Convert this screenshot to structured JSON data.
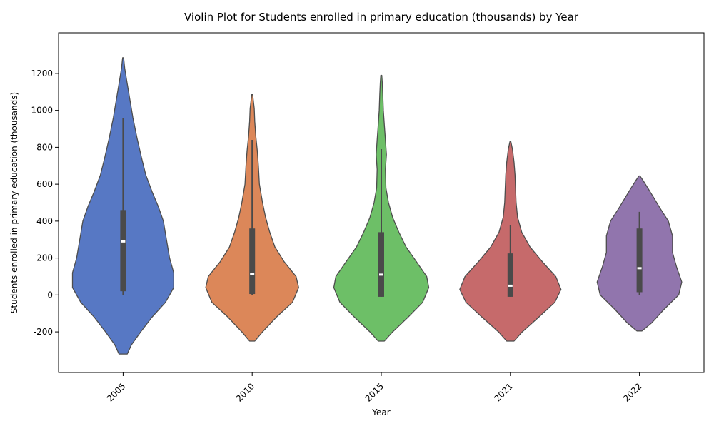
{
  "chart_data": {
    "type": "violin",
    "title": "Violin Plot for Students enrolled in primary education (thousands) by Year",
    "xlabel": "Year",
    "ylabel": "Students enrolled in primary education (thousands)",
    "ylim": [
      -420,
      1420
    ],
    "yticks": [
      -200,
      0,
      200,
      400,
      600,
      800,
      1000,
      1200
    ],
    "grid": false,
    "legend": "none",
    "categories": [
      "2005",
      "2010",
      "2015",
      "2021",
      "2022"
    ],
    "colors": [
      "#5778c4",
      "#dc8759",
      "#6dbf67",
      "#c66a6b",
      "#9175ad"
    ],
    "outline_color": "#4d4d4d",
    "series": [
      {
        "category": "2005",
        "box": {
          "whisker_low": 0,
          "q1": 20,
          "median": 290,
          "q3": 460,
          "whisker_high": 960
        },
        "density": [
          [
            -320,
            0.08
          ],
          [
            -270,
            0.16
          ],
          [
            -200,
            0.34
          ],
          [
            -120,
            0.56
          ],
          [
            -40,
            0.82
          ],
          [
            40,
            0.98
          ],
          [
            120,
            0.98
          ],
          [
            200,
            0.9
          ],
          [
            300,
            0.84
          ],
          [
            400,
            0.78
          ],
          [
            480,
            0.68
          ],
          [
            560,
            0.56
          ],
          [
            650,
            0.44
          ],
          [
            740,
            0.36
          ],
          [
            850,
            0.27
          ],
          [
            960,
            0.19
          ],
          [
            1060,
            0.13
          ],
          [
            1160,
            0.07
          ],
          [
            1230,
            0.03
          ],
          [
            1285,
            0.01
          ]
        ]
      },
      {
        "category": "2010",
        "box": {
          "whisker_low": 0,
          "q1": 5,
          "median": 115,
          "q3": 360,
          "whisker_high": 840
        },
        "density": [
          [
            -250,
            0.05
          ],
          [
            -200,
            0.2
          ],
          [
            -120,
            0.47
          ],
          [
            -40,
            0.78
          ],
          [
            40,
            0.9
          ],
          [
            100,
            0.85
          ],
          [
            180,
            0.62
          ],
          [
            260,
            0.44
          ],
          [
            340,
            0.34
          ],
          [
            420,
            0.26
          ],
          [
            500,
            0.2
          ],
          [
            600,
            0.14
          ],
          [
            700,
            0.12
          ],
          [
            780,
            0.1
          ],
          [
            860,
            0.07
          ],
          [
            940,
            0.05
          ],
          [
            1010,
            0.04
          ],
          [
            1060,
            0.02
          ],
          [
            1085,
            0.01
          ]
        ]
      },
      {
        "category": "2015",
        "box": {
          "whisker_low": -10,
          "q1": -10,
          "median": 110,
          "q3": 340,
          "whisker_high": 790
        },
        "density": [
          [
            -250,
            0.06
          ],
          [
            -200,
            0.22
          ],
          [
            -120,
            0.52
          ],
          [
            -40,
            0.8
          ],
          [
            40,
            0.92
          ],
          [
            100,
            0.88
          ],
          [
            180,
            0.68
          ],
          [
            260,
            0.48
          ],
          [
            340,
            0.34
          ],
          [
            420,
            0.22
          ],
          [
            500,
            0.14
          ],
          [
            580,
            0.09
          ],
          [
            680,
            0.08
          ],
          [
            760,
            0.1
          ],
          [
            840,
            0.08
          ],
          [
            920,
            0.06
          ],
          [
            1000,
            0.04
          ],
          [
            1080,
            0.03
          ],
          [
            1150,
            0.02
          ],
          [
            1190,
            0.01
          ]
        ]
      },
      {
        "category": "2021",
        "box": {
          "whisker_low": -10,
          "q1": -10,
          "median": 50,
          "q3": 225,
          "whisker_high": 380
        },
        "density": [
          [
            -250,
            0.07
          ],
          [
            -200,
            0.23
          ],
          [
            -120,
            0.55
          ],
          [
            -40,
            0.86
          ],
          [
            30,
            0.98
          ],
          [
            100,
            0.88
          ],
          [
            180,
            0.62
          ],
          [
            260,
            0.38
          ],
          [
            340,
            0.22
          ],
          [
            420,
            0.14
          ],
          [
            500,
            0.11
          ],
          [
            580,
            0.1
          ],
          [
            650,
            0.09
          ],
          [
            720,
            0.07
          ],
          [
            790,
            0.04
          ],
          [
            830,
            0.01
          ]
        ]
      },
      {
        "category": "2022",
        "box": {
          "whisker_low": 0,
          "q1": 15,
          "median": 145,
          "q3": 360,
          "whisker_high": 450
        },
        "density": [
          [
            -195,
            0.05
          ],
          [
            -150,
            0.24
          ],
          [
            -80,
            0.47
          ],
          [
            0,
            0.76
          ],
          [
            70,
            0.82
          ],
          [
            150,
            0.72
          ],
          [
            230,
            0.64
          ],
          [
            320,
            0.64
          ],
          [
            400,
            0.56
          ],
          [
            470,
            0.4
          ],
          [
            530,
            0.27
          ],
          [
            580,
            0.16
          ],
          [
            620,
            0.07
          ],
          [
            645,
            0.01
          ]
        ]
      }
    ]
  }
}
